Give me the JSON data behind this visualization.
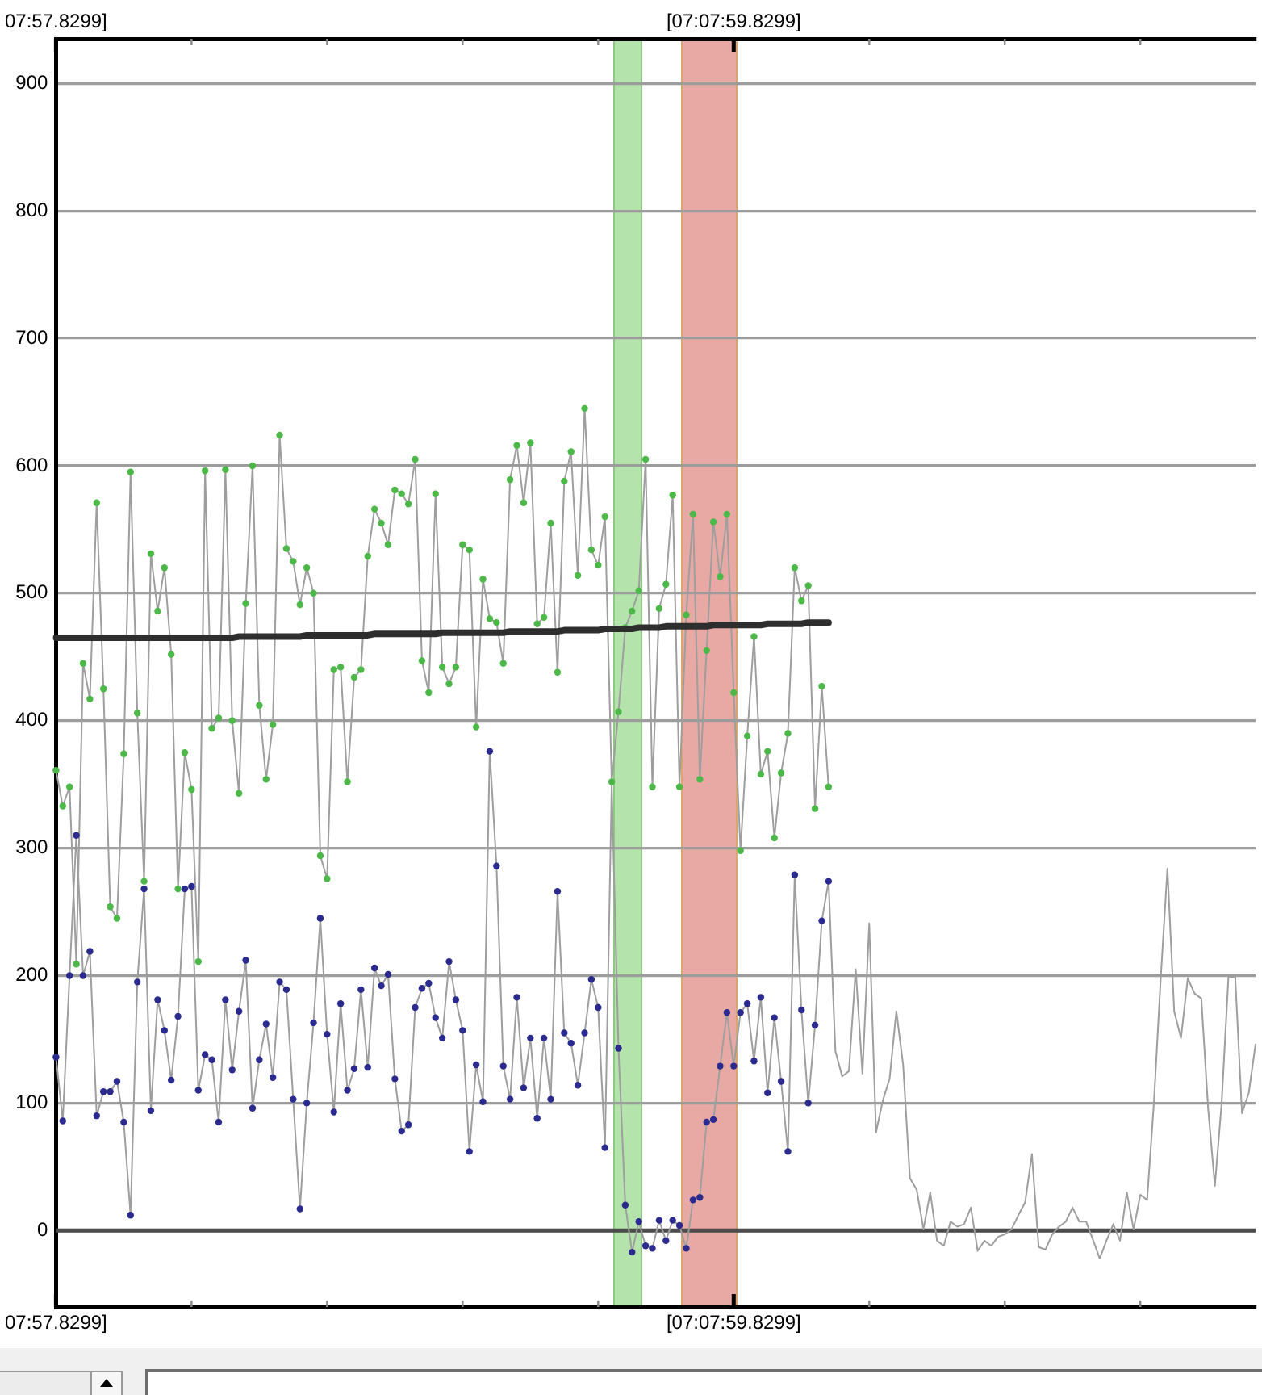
{
  "chart_data": {
    "type": "line",
    "categories": [
      "07:57.8299]",
      null,
      null,
      null,
      null,
      null,
      null,
      null,
      null,
      null,
      null,
      null,
      null,
      null,
      null,
      null,
      null,
      null,
      null,
      null,
      null,
      null,
      null,
      null,
      null,
      null,
      null,
      null,
      null,
      null,
      null,
      null,
      null,
      null,
      null,
      null,
      null,
      null,
      null,
      null,
      null,
      null,
      null,
      null,
      null,
      null,
      null,
      null,
      null,
      null,
      null,
      null,
      null,
      null,
      null,
      null,
      null,
      null,
      null,
      null,
      null,
      null,
      null,
      null,
      null,
      null,
      null,
      null,
      null,
      null,
      null,
      null,
      null,
      null,
      null,
      null,
      null,
      null,
      null,
      null,
      null,
      null,
      null,
      null,
      null,
      null,
      null,
      null,
      null,
      null,
      null,
      null,
      null,
      null,
      null,
      null,
      null,
      null,
      null,
      null,
      "[07:07:59.8299]",
      null,
      null,
      null,
      null,
      null,
      null,
      null,
      null,
      null,
      null,
      null,
      null,
      null,
      null,
      null,
      null,
      null,
      null,
      null,
      null,
      null,
      null,
      null,
      null,
      null,
      null,
      null,
      null,
      null,
      null,
      null,
      null,
      null,
      null,
      null,
      null,
      null,
      null,
      null,
      null,
      null,
      null,
      null,
      null,
      null,
      null,
      null,
      null,
      null,
      null,
      null,
      null,
      null,
      null,
      null,
      null,
      null,
      null,
      null,
      null,
      null,
      null,
      null,
      null,
      null,
      null,
      null,
      null,
      null,
      null,
      null,
      null,
      null,
      null,
      null,
      null,
      null
    ],
    "ylim": [
      -60,
      935
    ],
    "yticks": [
      0,
      100,
      200,
      300,
      400,
      500,
      600,
      700,
      800,
      900
    ],
    "grid": "y",
    "ref_lines": [
      {
        "axis": "y",
        "value": 0,
        "color": "#4a4a4a"
      }
    ],
    "series": [
      {
        "type": "line",
        "color": "#9e9e9e",
        "marker": "none",
        "values": [
          361,
          333,
          348,
          209,
          445,
          417,
          571,
          425,
          254,
          245,
          374,
          595,
          406,
          274,
          531,
          486,
          520,
          452,
          268,
          375,
          346,
          211,
          596,
          394,
          402,
          597,
          400,
          343,
          492,
          600,
          412,
          354,
          397,
          624,
          535,
          525,
          491,
          520,
          500,
          294,
          276,
          440,
          442,
          352,
          434,
          440,
          529,
          566,
          555,
          538,
          581,
          578,
          570,
          605,
          447,
          422,
          578,
          442,
          429,
          442,
          538,
          534,
          395,
          511,
          480,
          477,
          445,
          589,
          616,
          571,
          618,
          476,
          481,
          555,
          438,
          588,
          611,
          514,
          645,
          534,
          522,
          560,
          352,
          407,
          473,
          486,
          502,
          605,
          348,
          488,
          507,
          577,
          348,
          483,
          562,
          354,
          455,
          556,
          513,
          562,
          422,
          298,
          388,
          466,
          358,
          376,
          308,
          359,
          390,
          520,
          494,
          506,
          331,
          427,
          348,
          null,
          null,
          null,
          null,
          null,
          null,
          null,
          null,
          null,
          null,
          null,
          null,
          null,
          null,
          null,
          null,
          null,
          null,
          null,
          null,
          null,
          null,
          null,
          null,
          null,
          null,
          null,
          null,
          null,
          null,
          null,
          null,
          null,
          null,
          null,
          null,
          null,
          null,
          null,
          null,
          null,
          null,
          null,
          null,
          null,
          null,
          null,
          null,
          null,
          null,
          null,
          null,
          null,
          null,
          null,
          null,
          null,
          null,
          null,
          null,
          null,
          null,
          null
        ]
      },
      {
        "type": "line",
        "color": "#9e9e9e",
        "marker": "none",
        "values": [
          136,
          86,
          200,
          310,
          200,
          219,
          90,
          109,
          109,
          117,
          85,
          12,
          195,
          268,
          94,
          181,
          157,
          118,
          168,
          268,
          270,
          110,
          138,
          134,
          85,
          181,
          126,
          172,
          212,
          96,
          134,
          162,
          120,
          195,
          189,
          103,
          17,
          100,
          163,
          245,
          154,
          93,
          178,
          110,
          127,
          189,
          128,
          206,
          192,
          201,
          119,
          78,
          83,
          175,
          190,
          194,
          167,
          151,
          211,
          181,
          157,
          62,
          130,
          101,
          376,
          286,
          129,
          103,
          183,
          112,
          151,
          88,
          151,
          103,
          266,
          155,
          147,
          114,
          155,
          197,
          175,
          65,
          350,
          143,
          20,
          -17,
          7,
          -12,
          -14,
          8,
          -8,
          8,
          4,
          -14,
          24,
          26,
          85,
          87,
          129,
          171,
          129,
          171,
          178,
          133,
          183,
          108,
          167,
          117,
          62,
          279,
          173,
          100,
          161,
          243,
          274,
          141,
          121,
          125,
          205,
          123,
          241,
          77,
          102,
          119,
          172,
          130,
          41,
          32,
          1,
          30,
          -8,
          -12,
          7,
          3,
          5,
          18,
          -16,
          -8,
          -12,
          -5,
          -3,
          1,
          12,
          22,
          60,
          -13,
          -15,
          -3,
          3,
          7,
          18,
          7,
          7,
          -7,
          -22,
          -8,
          5,
          -8,
          30,
          1,
          28,
          24,
          100,
          197,
          284,
          172,
          151,
          198,
          186,
          182,
          96,
          35,
          100,
          199,
          199,
          92,
          108,
          146
        ]
      },
      {
        "type": "scatter",
        "color": "#2b2b8f",
        "marker": "circle",
        "values": [
          136,
          86,
          200,
          310,
          200,
          219,
          90,
          109,
          109,
          117,
          85,
          12,
          195,
          268,
          94,
          181,
          157,
          118,
          168,
          268,
          270,
          110,
          138,
          134,
          85,
          181,
          126,
          172,
          212,
          96,
          134,
          162,
          120,
          195,
          189,
          103,
          17,
          100,
          163,
          245,
          154,
          93,
          178,
          110,
          127,
          189,
          128,
          206,
          192,
          201,
          119,
          78,
          83,
          175,
          190,
          194,
          167,
          151,
          211,
          181,
          157,
          62,
          130,
          101,
          376,
          286,
          129,
          103,
          183,
          112,
          151,
          88,
          151,
          103,
          266,
          155,
          147,
          114,
          155,
          197,
          175,
          65,
          null,
          143,
          20,
          -17,
          7,
          -12,
          -14,
          8,
          -8,
          8,
          4,
          -14,
          24,
          26,
          85,
          87,
          129,
          171,
          129,
          171,
          178,
          133,
          183,
          108,
          167,
          117,
          62,
          279,
          173,
          100,
          161,
          243,
          274,
          null,
          null,
          null,
          null,
          null,
          null,
          null,
          null,
          null,
          null,
          null,
          null,
          null,
          null,
          null,
          null,
          null,
          null,
          null,
          null,
          null,
          null,
          null,
          null,
          null,
          null,
          null,
          null,
          null,
          null,
          null,
          null,
          null,
          null,
          null,
          null,
          null,
          null,
          null,
          null,
          null,
          null,
          null,
          null,
          null,
          null,
          null,
          null,
          null,
          null,
          null,
          null,
          null,
          null,
          null,
          null,
          null,
          null,
          null,
          null,
          null,
          null,
          null
        ]
      },
      {
        "type": "scatter",
        "color": "#4cb848",
        "marker": "circle",
        "values": [
          361,
          333,
          348,
          209,
          445,
          417,
          571,
          425,
          254,
          245,
          374,
          595,
          406,
          274,
          531,
          486,
          520,
          452,
          268,
          375,
          346,
          211,
          596,
          394,
          402,
          597,
          400,
          343,
          492,
          600,
          412,
          354,
          397,
          624,
          535,
          525,
          491,
          520,
          500,
          294,
          276,
          440,
          442,
          352,
          434,
          440,
          529,
          566,
          555,
          538,
          581,
          578,
          570,
          605,
          447,
          422,
          578,
          442,
          429,
          442,
          538,
          534,
          395,
          511,
          480,
          477,
          445,
          589,
          616,
          571,
          618,
          476,
          481,
          555,
          438,
          588,
          611,
          514,
          645,
          534,
          522,
          560,
          352,
          407,
          473,
          486,
          502,
          605,
          348,
          488,
          507,
          577,
          348,
          483,
          562,
          354,
          455,
          556,
          513,
          562,
          422,
          298,
          388,
          466,
          358,
          376,
          308,
          359,
          390,
          520,
          494,
          506,
          331,
          427,
          348,
          null,
          null,
          null,
          null,
          null,
          null,
          null,
          null,
          null,
          null,
          null,
          null,
          null,
          null,
          null,
          null,
          null,
          null,
          null,
          null,
          null,
          null,
          null,
          null,
          null,
          null,
          null,
          null,
          null,
          null,
          null,
          null,
          null,
          null,
          null,
          null,
          null,
          null,
          null,
          null,
          null,
          null,
          null,
          null,
          null,
          null,
          null,
          null,
          null,
          null,
          null,
          null,
          null,
          null,
          null,
          null,
          null,
          null,
          null,
          null,
          null,
          null,
          null
        ]
      },
      {
        "type": "line",
        "color": "#2e2e2e",
        "marker": "none",
        "values": [
          465,
          465,
          465,
          465,
          465,
          465,
          465,
          465,
          465,
          465,
          465,
          465,
          465,
          465,
          465,
          465,
          465,
          465,
          465,
          465,
          465,
          465,
          465,
          465,
          465,
          465,
          465,
          466,
          466,
          466,
          466,
          466,
          466,
          466,
          466,
          466,
          466,
          467,
          467,
          467,
          467,
          467,
          467,
          467,
          467,
          467,
          467,
          468,
          468,
          468,
          468,
          468,
          468,
          468,
          468,
          468,
          468,
          469,
          469,
          469,
          469,
          469,
          469,
          469,
          469,
          469,
          469,
          470,
          470,
          470,
          470,
          470,
          470,
          470,
          470,
          471,
          471,
          471,
          471,
          471,
          471,
          472,
          472,
          472,
          472,
          472,
          473,
          473,
          473,
          473,
          474,
          474,
          474,
          474,
          474,
          474,
          474,
          475,
          475,
          475,
          475,
          475,
          475,
          475,
          475,
          476,
          476,
          476,
          476,
          476,
          476,
          477,
          477,
          477,
          477,
          null,
          null,
          null,
          null,
          null,
          null,
          null,
          null,
          null,
          null,
          null,
          null,
          null,
          null,
          null,
          null,
          null,
          null,
          null,
          null,
          null,
          null,
          null,
          null,
          null,
          null,
          null,
          null,
          null,
          null,
          null,
          null,
          null,
          null,
          null,
          null,
          null,
          null,
          null,
          null,
          null,
          null,
          null,
          null,
          null,
          null,
          null,
          null,
          null,
          null,
          null,
          null,
          null,
          null,
          null,
          null,
          null,
          null,
          null,
          null,
          null,
          null,
          null
        ]
      }
    ]
  }
}
